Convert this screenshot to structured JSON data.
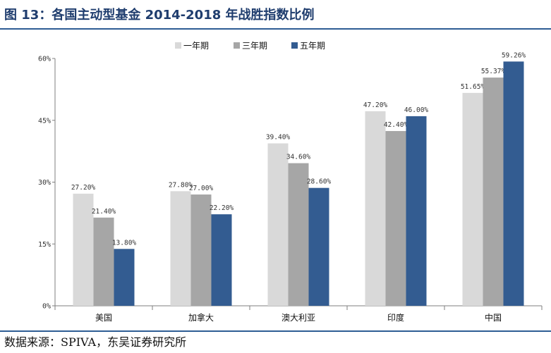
{
  "figure": {
    "title": "图 13：各国主动型基金 2014-2018 年战胜指数比例",
    "source": "数据来源：SPIVA，东吴证券研究所"
  },
  "chart_data": {
    "type": "bar",
    "categories": [
      "美国",
      "加拿大",
      "澳大利亚",
      "印度",
      "中国"
    ],
    "series": [
      {
        "name": "一年期",
        "color": "#d9d9d9",
        "values": [
          27.2,
          27.8,
          39.4,
          47.2,
          51.65
        ],
        "labels": [
          "27.20%",
          "27.80%",
          "39.40%",
          "47.20%",
          "51.65%"
        ]
      },
      {
        "name": "三年期",
        "color": "#a6a6a6",
        "values": [
          21.4,
          27.0,
          34.6,
          42.4,
          55.37
        ],
        "labels": [
          "21.40%",
          "27.00%",
          "34.60%",
          "42.40%",
          "55.37%"
        ]
      },
      {
        "name": "五年期",
        "color": "#335c91",
        "values": [
          13.8,
          22.2,
          28.6,
          46.0,
          59.26
        ],
        "labels": [
          "13.80%",
          "22.20%",
          "28.60%",
          "46.00%",
          "59.26%"
        ]
      }
    ],
    "ylim": [
      0,
      60
    ],
    "yticks": [
      0,
      15,
      30,
      45,
      60
    ],
    "ytick_labels": [
      "0%",
      "15%",
      "30%",
      "45%",
      "60%"
    ],
    "legend_position": "top-center",
    "grid": false
  }
}
